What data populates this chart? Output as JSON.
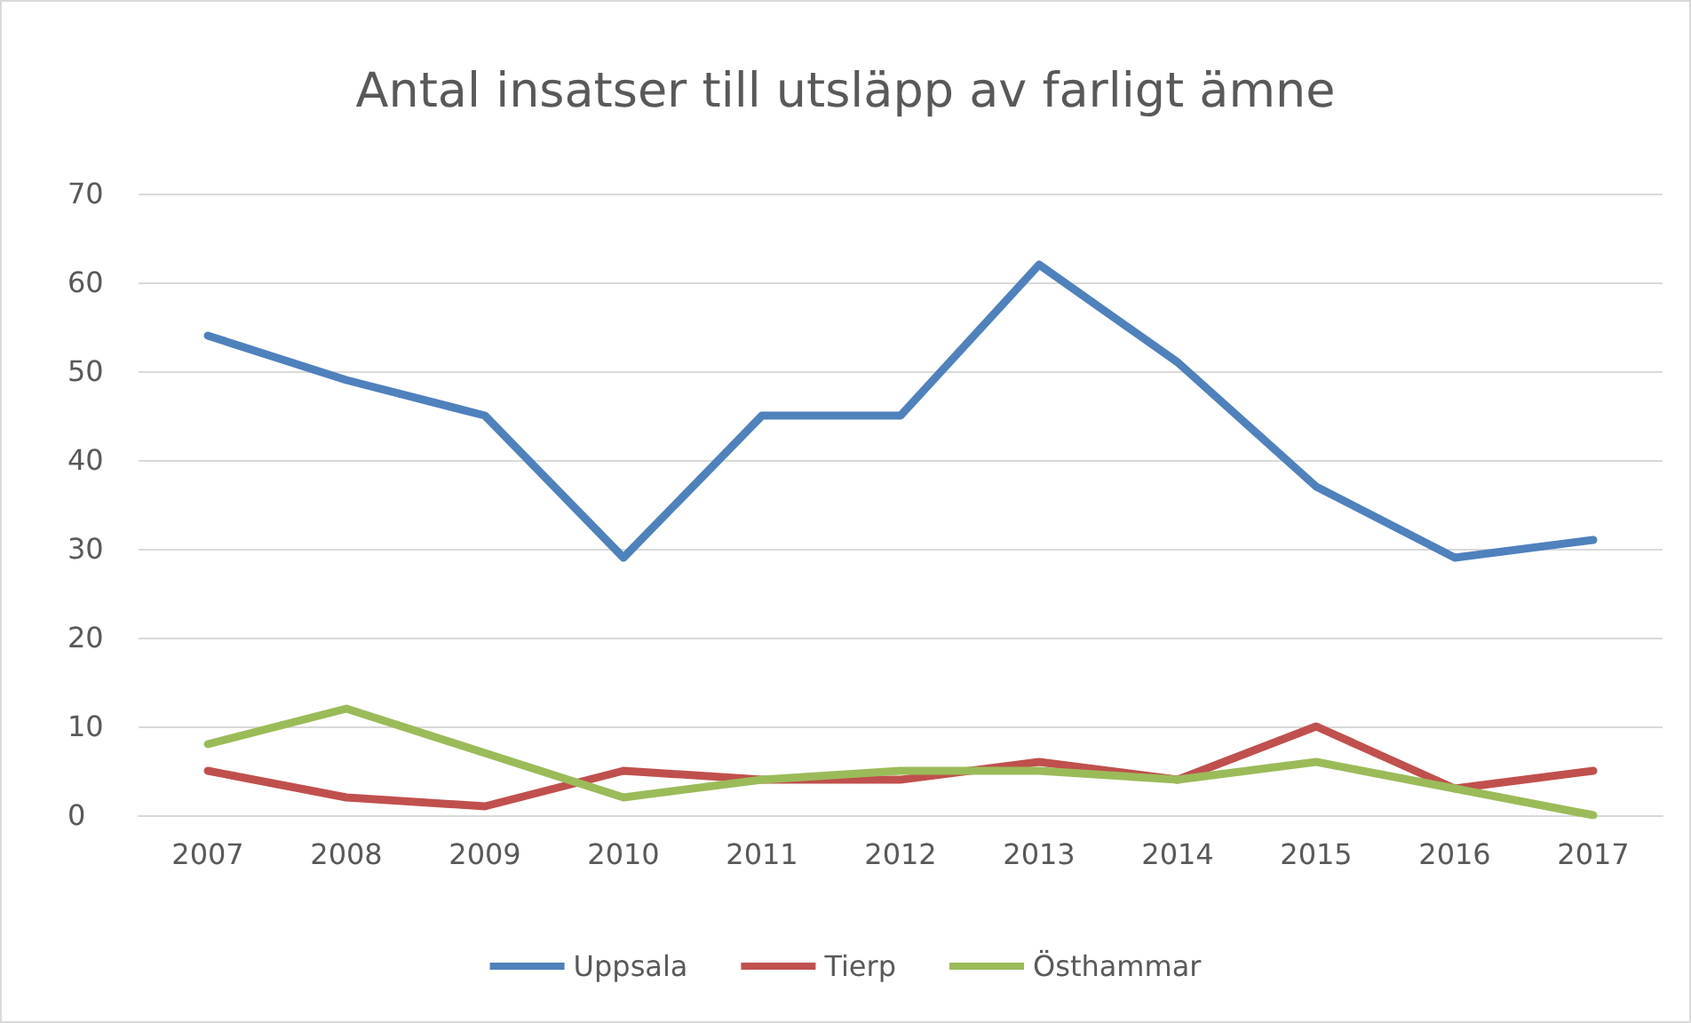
{
  "chart_data": {
    "type": "line",
    "title": "Antal insatser till utsläpp av farligt ämne",
    "categories": [
      "2007",
      "2008",
      "2009",
      "2010",
      "2011",
      "2012",
      "2013",
      "2014",
      "2015",
      "2016",
      "2017"
    ],
    "series": [
      {
        "name": "Uppsala",
        "color": "#4f81bd",
        "values": [
          54,
          49,
          45,
          29,
          45,
          45,
          62,
          51,
          37,
          29,
          31
        ]
      },
      {
        "name": "Tierp",
        "color": "#c0504d",
        "values": [
          5,
          2,
          1,
          5,
          4,
          4,
          6,
          4,
          10,
          3,
          5
        ]
      },
      {
        "name": "Östhammar",
        "color": "#9bbb59",
        "values": [
          8,
          12,
          7,
          2,
          4,
          5,
          5,
          4,
          6,
          3,
          0
        ]
      }
    ],
    "ylim": [
      0,
      70
    ],
    "yticks": [
      0,
      10,
      20,
      30,
      40,
      50,
      60,
      70
    ],
    "grid": "y",
    "legend": "bottom",
    "marker": "none",
    "line_style": "solid"
  }
}
